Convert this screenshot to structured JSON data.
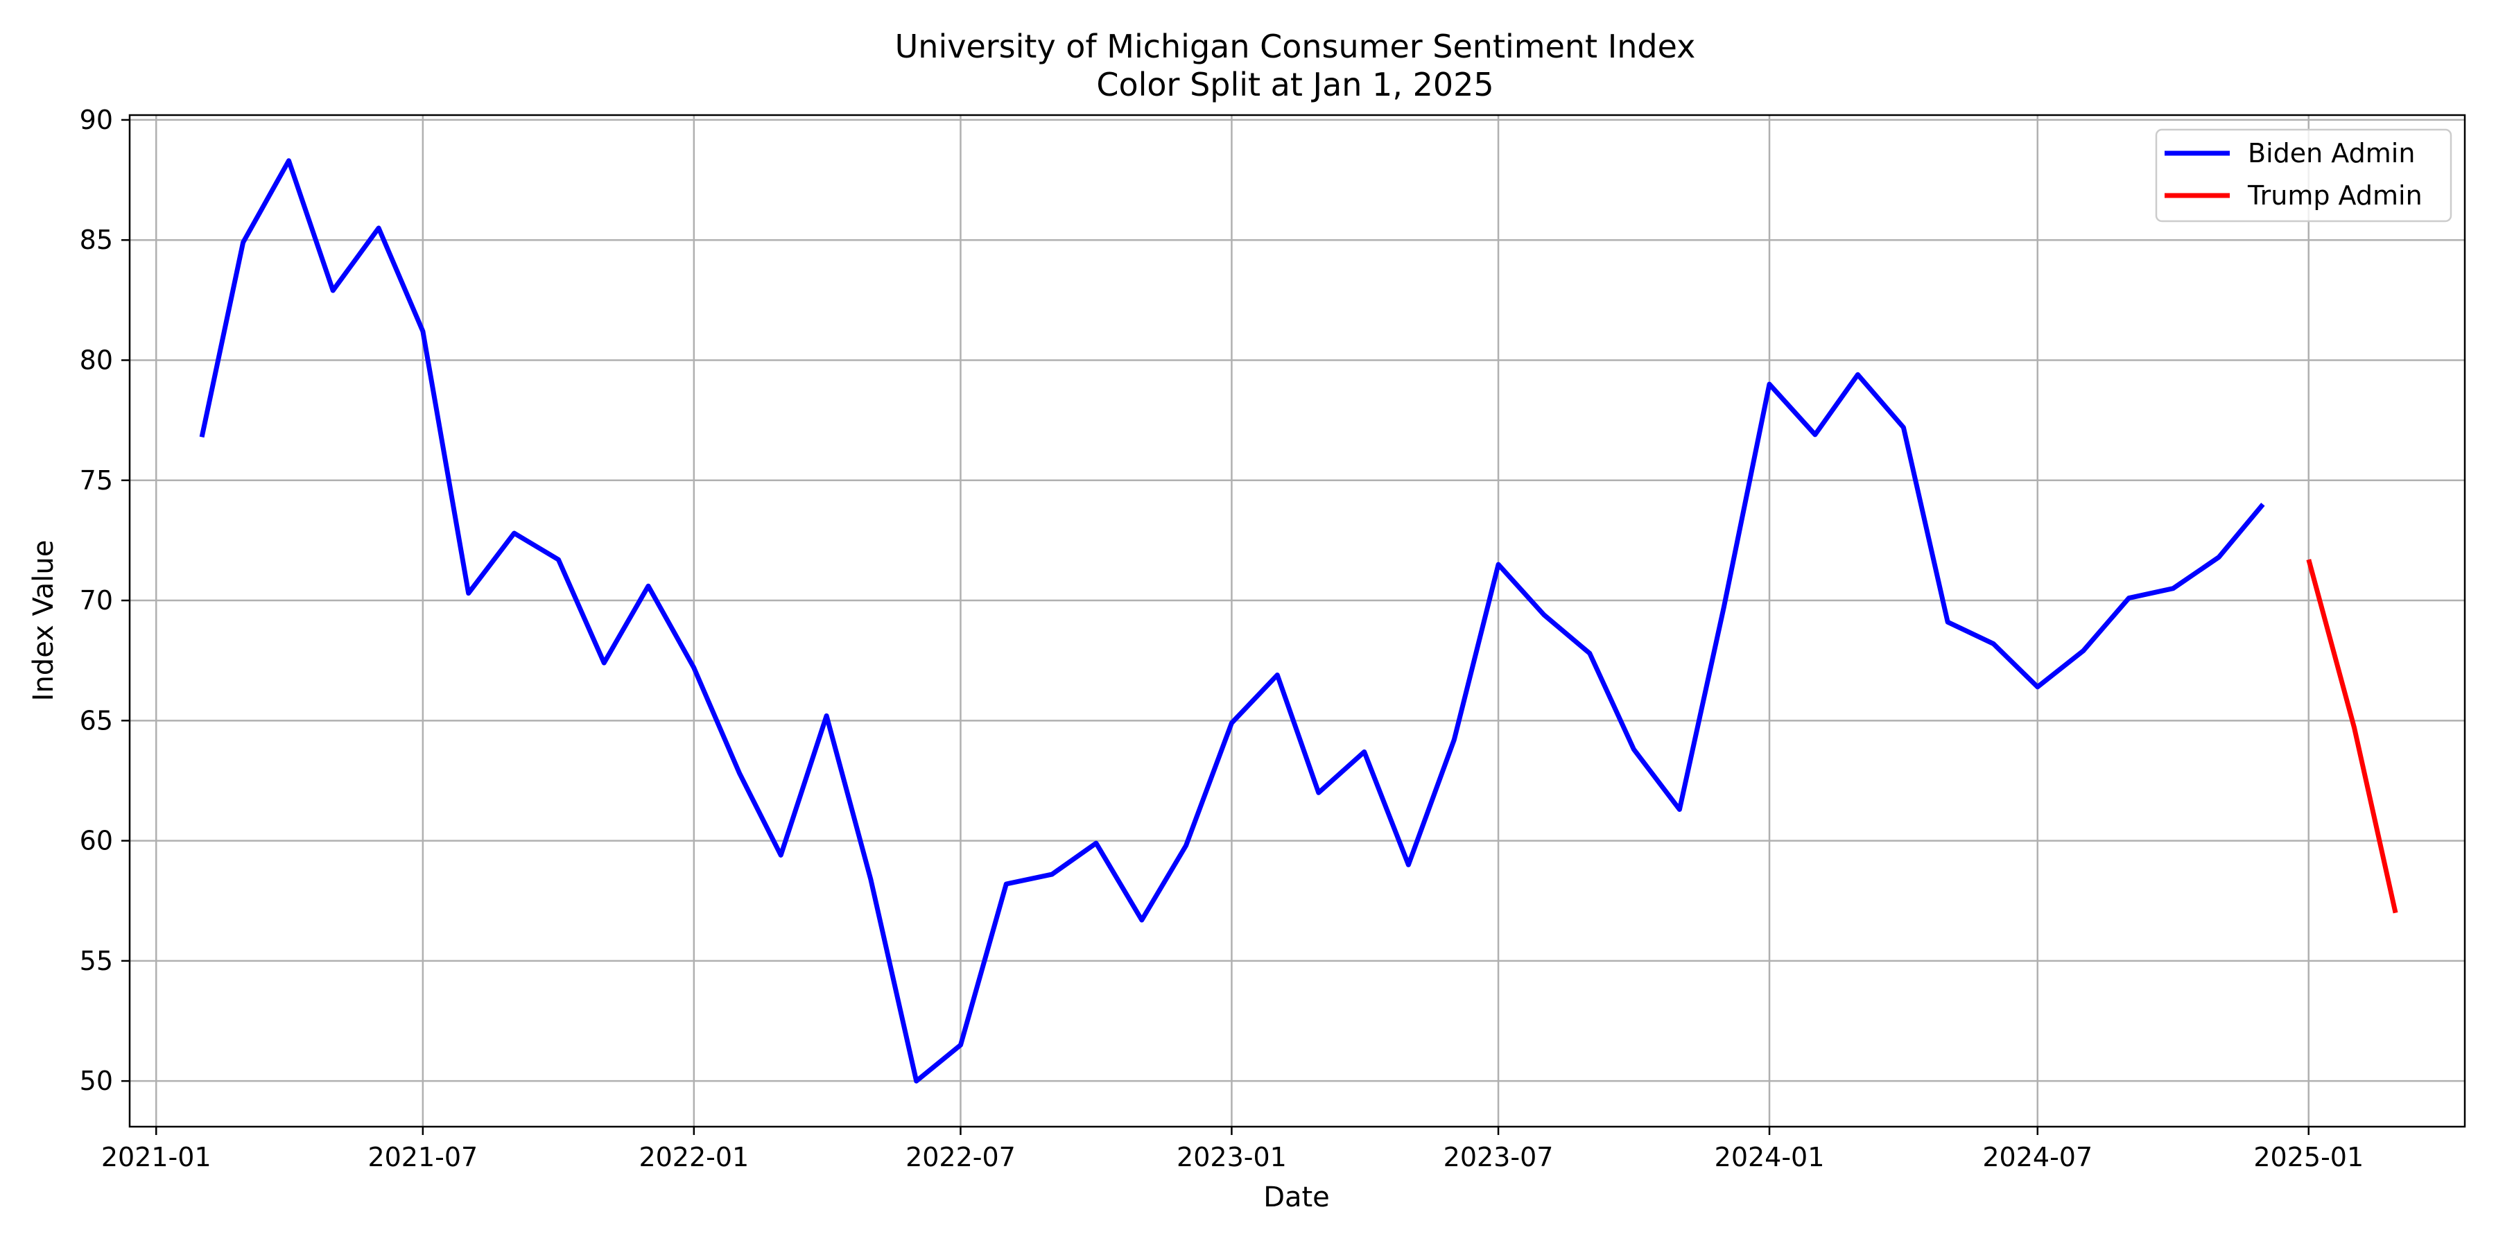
{
  "chart_data": {
    "type": "line",
    "title": "University of Michigan Consumer Sentiment Index",
    "subtitle": "Color Split at Jan 1, 2025",
    "xlabel": "Date",
    "ylabel": "Index Value",
    "ylim": [
      48.1,
      90.2
    ],
    "xlim": [
      "2020-12-14",
      "2025-04-17"
    ],
    "grid": true,
    "legend_position": "top-right",
    "x_ticks": [
      "2021-01",
      "2021-07",
      "2022-01",
      "2022-07",
      "2023-01",
      "2023-07",
      "2024-01",
      "2024-07",
      "2025-01"
    ],
    "y_ticks": [
      50,
      55,
      60,
      65,
      70,
      75,
      80,
      85,
      90
    ],
    "series": [
      {
        "name": "Biden Admin",
        "color": "#0000ff",
        "x": [
          "2021-02-01",
          "2021-03-01",
          "2021-04-01",
          "2021-05-01",
          "2021-06-01",
          "2021-07-01",
          "2021-08-01",
          "2021-09-01",
          "2021-10-01",
          "2021-11-01",
          "2021-12-01",
          "2022-01-01",
          "2022-02-01",
          "2022-03-01",
          "2022-04-01",
          "2022-05-01",
          "2022-06-01",
          "2022-07-01",
          "2022-08-01",
          "2022-09-01",
          "2022-10-01",
          "2022-11-01",
          "2022-12-01",
          "2023-01-01",
          "2023-02-01",
          "2023-03-01",
          "2023-04-01",
          "2023-05-01",
          "2023-06-01",
          "2023-07-01",
          "2023-08-01",
          "2023-09-01",
          "2023-10-01",
          "2023-11-01",
          "2023-12-01",
          "2024-01-01",
          "2024-02-01",
          "2024-03-01",
          "2024-04-01",
          "2024-05-01",
          "2024-06-01",
          "2024-07-01",
          "2024-08-01",
          "2024-09-01",
          "2024-10-01",
          "2024-11-01",
          "2024-12-01"
        ],
        "values": [
          76.8,
          84.9,
          88.3,
          82.9,
          85.5,
          81.2,
          70.3,
          72.8,
          71.7,
          67.4,
          70.6,
          67.2,
          62.8,
          59.4,
          65.2,
          58.4,
          50.0,
          51.5,
          58.2,
          58.6,
          59.9,
          56.7,
          59.8,
          64.9,
          66.9,
          62.0,
          63.7,
          59.0,
          64.2,
          71.5,
          69.4,
          67.8,
          63.8,
          61.3,
          69.7,
          79.0,
          76.9,
          79.4,
          77.2,
          69.1,
          68.2,
          66.4,
          67.9,
          70.1,
          70.5,
          71.8,
          74.0
        ]
      },
      {
        "name": "Trump Admin",
        "color": "#ff0000",
        "x": [
          "2025-01-01",
          "2025-02-01",
          "2025-03-01"
        ],
        "values": [
          71.7,
          64.7,
          57.0
        ]
      }
    ]
  }
}
